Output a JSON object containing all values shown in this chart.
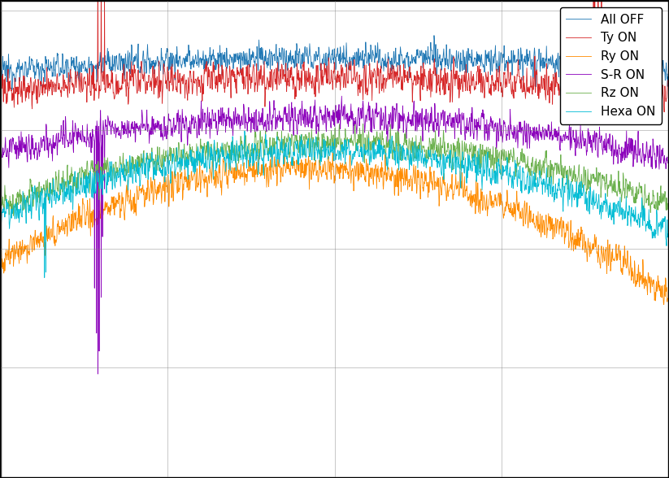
{
  "title": "",
  "xlabel": "",
  "ylabel": "",
  "legend_labels": [
    "All OFF",
    "Ty ON",
    "Ry ON",
    "S-R ON",
    "Rz ON",
    "Hexa ON"
  ],
  "colors": [
    "#1f77b4",
    "#d62728",
    "#ff8c00",
    "#8B00BB",
    "#6ab04c",
    "#00bcd4"
  ],
  "n_points": 2000,
  "background_color": "#ffffff",
  "grid": true,
  "linewidth": 0.6
}
